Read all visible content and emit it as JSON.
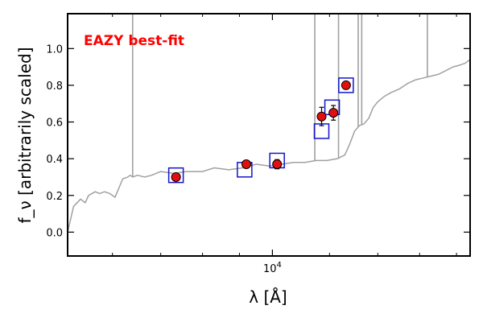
{
  "chart_data": {
    "type": "scatter",
    "title": "",
    "annotation": "EAZY best-fit",
    "xlabel": "λ [Å]",
    "ylabel": "f_ν [arbitrarily scaled]",
    "xscale": "log",
    "xlim": [
      5200,
      18800
    ],
    "ylim": [
      -0.13,
      1.19
    ],
    "yticks": [
      0.0,
      0.2,
      0.4,
      0.6,
      0.8,
      1.0
    ],
    "ytick_labels": [
      "0.0",
      "0.2",
      "0.4",
      "0.6",
      "0.8",
      "1.0"
    ],
    "xticks_major": [
      10000
    ],
    "xtick_labels_major": [
      "10^4"
    ],
    "xticks_minor": [
      6000,
      7000,
      8000,
      9000,
      12000,
      14000,
      16000,
      18000
    ],
    "grid": false,
    "colors": {
      "sed": "#a0a0a0",
      "model_box": "#1414cc",
      "obs_fill": "#e01010",
      "annotation": "#ff0000"
    },
    "series": [
      {
        "role": "sed",
        "x": [
          5200,
          5300,
          5420,
          5500,
          5560,
          5620,
          5680,
          5760,
          5850,
          5950,
          6050,
          6200,
          6300,
          6350,
          6400,
          6500,
          6650,
          6800,
          7000,
          7300,
          7600,
          8000,
          8300,
          8700,
          9100,
          9500,
          9900,
          10300,
          10700,
          11100,
          11500,
          11900,
          12300,
          12600,
          12800,
          13000,
          13200,
          13400,
          13600,
          13800,
          14000,
          14300,
          14600,
          15000,
          15400,
          15800,
          16200,
          16600,
          17000,
          17400,
          17800,
          18200,
          18500,
          18800
        ],
        "y": [
          0.0,
          0.14,
          0.18,
          0.16,
          0.2,
          0.21,
          0.22,
          0.21,
          0.22,
          0.21,
          0.19,
          0.29,
          0.3,
          0.31,
          0.3,
          0.31,
          0.3,
          0.31,
          0.33,
          0.32,
          0.33,
          0.33,
          0.35,
          0.34,
          0.35,
          0.37,
          0.36,
          0.37,
          0.38,
          0.38,
          0.39,
          0.39,
          0.4,
          0.42,
          0.48,
          0.55,
          0.58,
          0.59,
          0.62,
          0.68,
          0.71,
          0.74,
          0.76,
          0.78,
          0.81,
          0.83,
          0.84,
          0.85,
          0.86,
          0.88,
          0.9,
          0.91,
          0.92,
          0.94
        ]
      },
      {
        "role": "model",
        "x": [
          7350,
          9150,
          10150,
          11700,
          12100,
          12650
        ],
        "y": [
          0.31,
          0.34,
          0.39,
          0.55,
          0.68,
          0.8
        ]
      },
      {
        "role": "observed",
        "x": [
          7350,
          9200,
          10150,
          11700,
          12150,
          12650
        ],
        "y": [
          0.3,
          0.37,
          0.37,
          0.63,
          0.65,
          0.8
        ],
        "yerr": [
          0.015,
          0.02,
          0.025,
          0.05,
          0.04,
          0.02
        ]
      }
    ],
    "emission_lines": [
      {
        "x": 6400,
        "top": 1.19
      },
      {
        "x": 11450,
        "top": 1.19
      },
      {
        "x": 12350,
        "top": 1.19
      },
      {
        "x": 13150,
        "top": 1.19
      },
      {
        "x": 13300,
        "top": 1.19
      },
      {
        "x": 16400,
        "top": 1.19
      }
    ]
  }
}
